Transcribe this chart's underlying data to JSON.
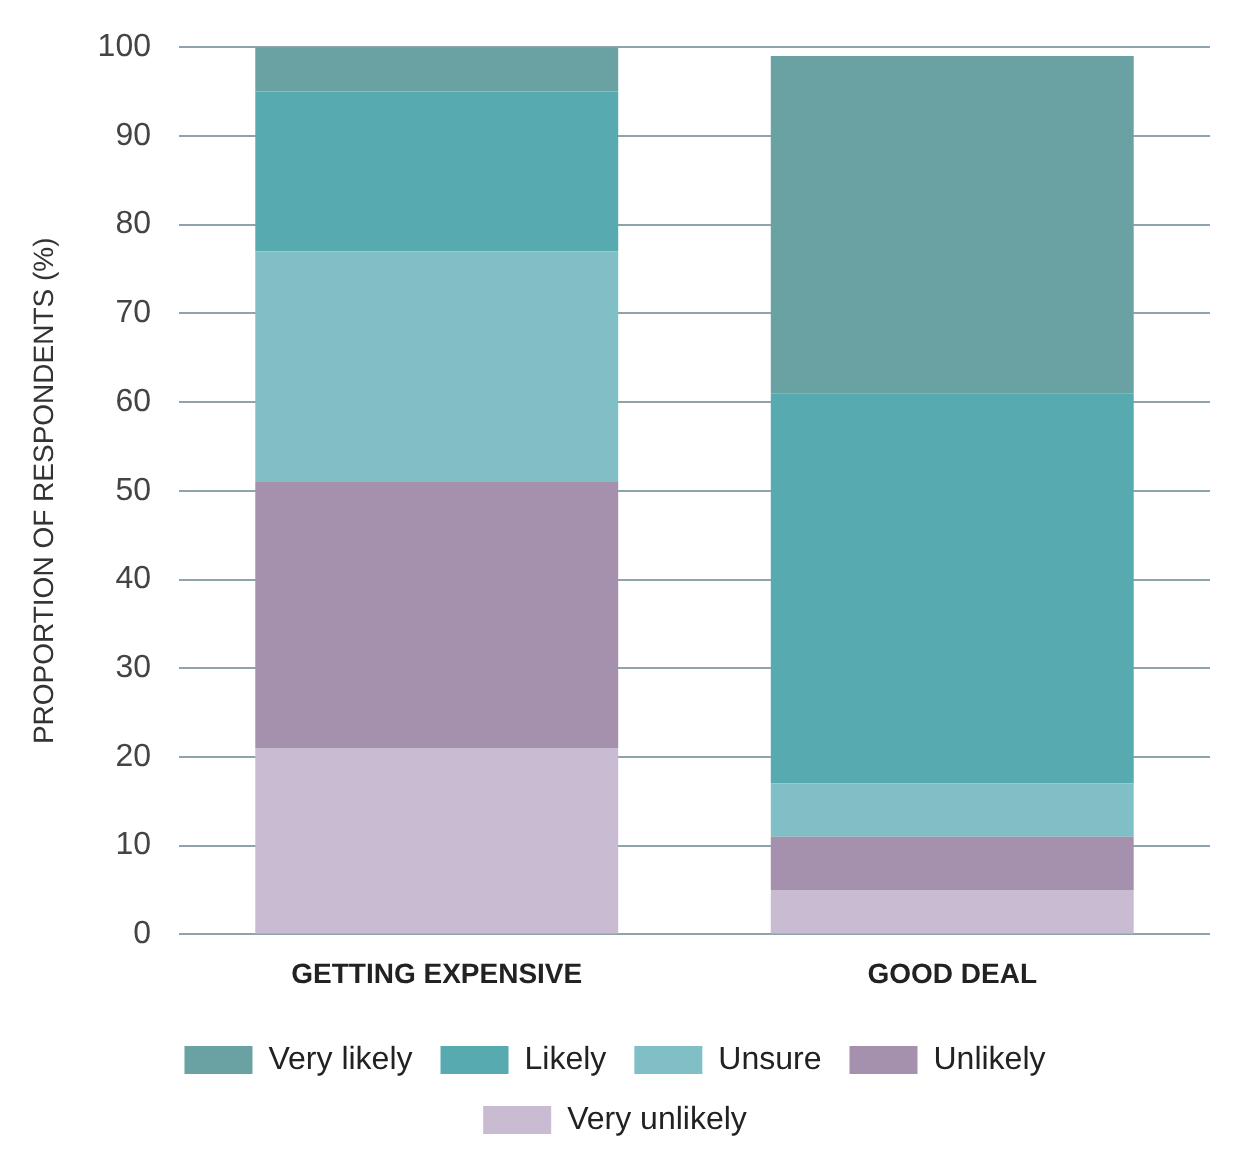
{
  "chart_data": {
    "type": "bar",
    "stacked": true,
    "ylabel": "PROPORTION OF RESPONDENTS (%)",
    "categories": [
      "GETTING EXPENSIVE",
      "GOOD DEAL"
    ],
    "series": [
      {
        "name": "Very unlikely",
        "color": "#c9bcd2",
        "values": [
          21,
          5
        ]
      },
      {
        "name": "Unlikely",
        "color": "#a590ae",
        "values": [
          30,
          6
        ]
      },
      {
        "name": "Unsure",
        "color": "#80bfc5",
        "values": [
          26,
          6
        ]
      },
      {
        "name": "Likely",
        "color": "#58aab1",
        "values": [
          18,
          44
        ]
      },
      {
        "name": "Very likely",
        "color": "#6aa2a4",
        "values": [
          5,
          38
        ]
      }
    ],
    "ylim": [
      0,
      100
    ],
    "yticks": [
      0,
      10,
      20,
      30,
      40,
      50,
      60,
      70,
      80,
      90,
      100
    ],
    "grid": "y",
    "legend": "bottom"
  }
}
